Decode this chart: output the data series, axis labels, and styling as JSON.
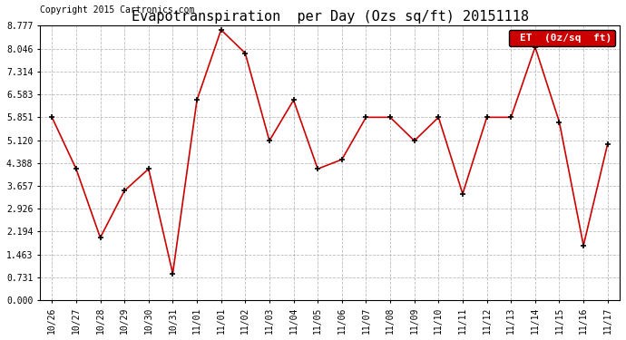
{
  "title": "Evapotranspiration  per Day (Ozs sq/ft) 20151118",
  "copyright": "Copyright 2015 Cartronics.com",
  "legend_label": "ET  (0z/sq  ft)",
  "legend_bg": "#cc0000",
  "legend_text_color": "#ffffff",
  "x_labels": [
    "10/26",
    "10/27",
    "10/28",
    "10/29",
    "10/30",
    "10/31",
    "11/01",
    "11/01",
    "11/02",
    "11/03",
    "11/04",
    "11/05",
    "11/06",
    "11/07",
    "11/08",
    "11/09",
    "11/10",
    "11/11",
    "11/12",
    "11/13",
    "11/14",
    "11/15",
    "11/16",
    "11/17"
  ],
  "y_values": [
    5.851,
    4.2,
    2.0,
    3.5,
    4.2,
    0.85,
    6.4,
    8.65,
    7.9,
    5.1,
    6.4,
    4.2,
    4.5,
    5.851,
    5.851,
    5.1,
    5.851,
    3.4,
    5.851,
    5.851,
    8.1,
    5.7,
    1.75,
    5.0
  ],
  "y_ticks": [
    0.0,
    0.731,
    1.463,
    2.194,
    2.926,
    3.657,
    4.388,
    5.12,
    5.851,
    6.583,
    7.314,
    8.046,
    8.777
  ],
  "ylim": [
    0.0,
    8.777
  ],
  "line_color": "#cc0000",
  "marker_color": "#000000",
  "bg_color": "#ffffff",
  "plot_bg_color": "#ffffff",
  "grid_color": "#bbbbbb",
  "title_fontsize": 11,
  "copyright_fontsize": 7,
  "tick_fontsize": 7
}
